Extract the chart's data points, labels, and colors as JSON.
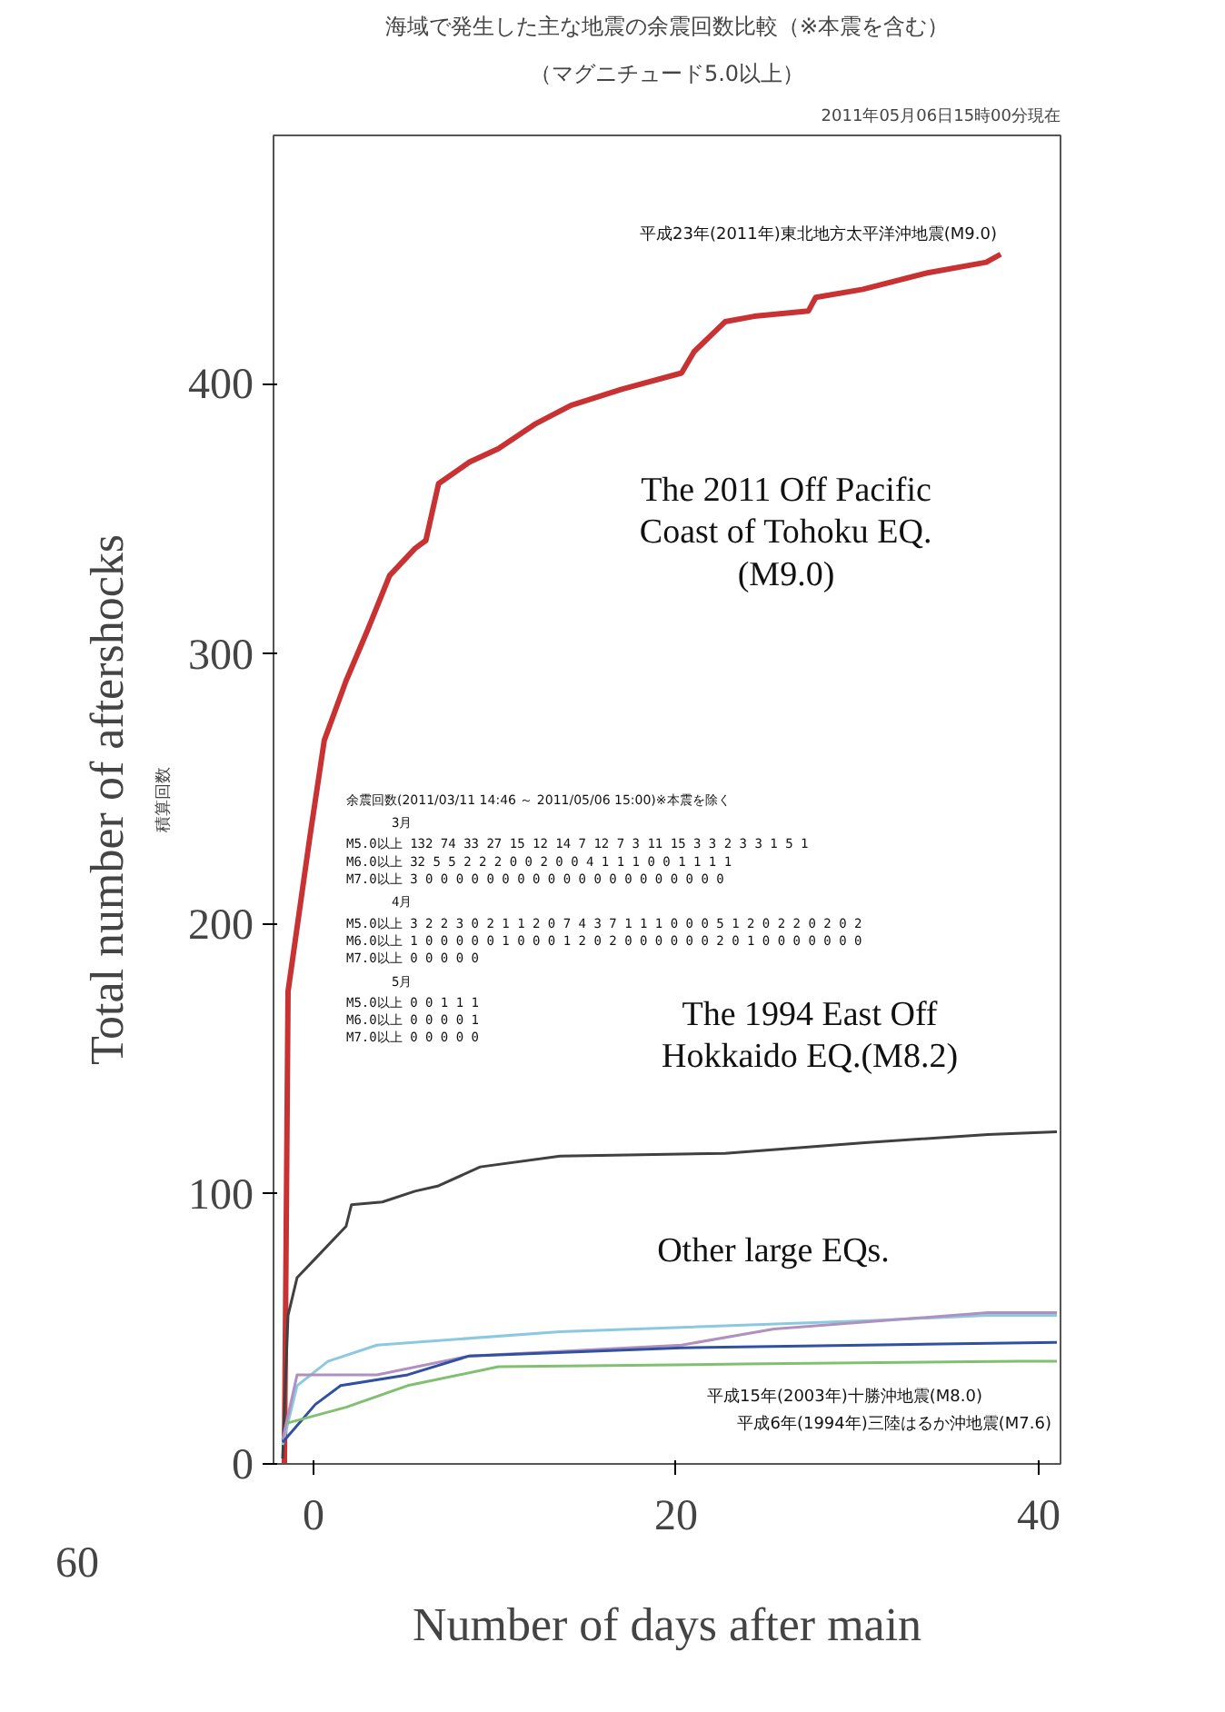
{
  "chart_data": {
    "type": "line",
    "title": "海域で発生した主な地震の余震回数比較（※本震を含む）",
    "subtitle": "（マグニチュード5.0以上）",
    "xlabel": "Number of days after main",
    "ylabel": "Total number of aftershocks",
    "xlim": [
      -2.2,
      41.2
    ],
    "ylim": [
      0,
      492
    ],
    "xticks": [
      0,
      20,
      40
    ],
    "yticks": [
      0,
      100,
      200,
      300,
      400
    ],
    "grid": false,
    "marker": "none",
    "line_style": "solid",
    "series": [
      {
        "color": "#c83232",
        "x": [
          -1.6,
          -1.4,
          -0.2,
          0.6,
          1.8,
          3.0,
          4.2,
          5.6,
          6.2,
          6.9,
          8.6,
          10.2,
          12.2,
          14.2,
          17.0,
          20.3,
          21.0,
          22.7,
          24.3,
          27.3,
          27.7,
          30.3,
          33.8,
          37.1,
          37.9
        ],
        "values": [
          0,
          175,
          232,
          268,
          290,
          309,
          329,
          339,
          342,
          363,
          371,
          376,
          385,
          392,
          398,
          404,
          412,
          423,
          425,
          427,
          432,
          435,
          441,
          445,
          448
        ]
      },
      {
        "color": "#404040",
        "x": [
          -1.7,
          -1.4,
          -0.9,
          0.1,
          1.8,
          2.1,
          3.8,
          5.6,
          6.9,
          9.2,
          13.6,
          22.7,
          30.4,
          37.2,
          41.0
        ],
        "values": [
          2,
          55,
          69,
          76,
          88,
          96,
          97,
          101,
          103,
          110,
          114,
          115,
          119,
          122,
          123
        ]
      },
      {
        "color": "#8cc8e0",
        "x": [
          -1.7,
          -0.9,
          0.8,
          3.5,
          13.6,
          30.4,
          37.2,
          41.0
        ],
        "values": [
          7,
          29,
          38,
          44,
          49,
          53,
          55,
          55
        ]
      },
      {
        "color": "#b090c0",
        "x": [
          -1.7,
          -0.9,
          3.5,
          8.6,
          20.3,
          25.4,
          37.2,
          41.0
        ],
        "values": [
          9,
          33,
          33,
          40,
          44,
          50,
          56,
          56
        ]
      },
      {
        "color": "#3050a0",
        "x": [
          -1.7,
          0.1,
          1.5,
          5.2,
          8.6,
          20.3,
          30.4,
          41.0
        ],
        "values": [
          8,
          22,
          29,
          33,
          40,
          43,
          44,
          45
        ]
      },
      {
        "color": "#80c070",
        "x": [
          -1.5,
          1.8,
          5.2,
          10.2,
          23.7,
          38.9,
          41.0
        ],
        "values": [
          15,
          21,
          29,
          36,
          37,
          38,
          38
        ]
      }
    ],
    "annotations": [
      "2011年05月06日15時00分現在",
      "平成23年(2011年)東北地方太平洋沖地震(M9.0)",
      "The 2011 Off Pacific\nCoast of Tohoku EQ.\n(M9.0)",
      "The 1994 East Off\nHokkaido EQ.(M8.2)",
      "Other large EQs.",
      "平成15年(2003年)十勝沖地震(M8.0)",
      "平成6年(1994年)三陸はるか沖地震(M7.6)",
      "積算回数",
      "60",
      "余震回数(2011/03/11 14:46 ～ 2011/05/06 15:00)※本震を除く",
      "3月",
      "M5.0以上 132 74 33 27 15 12 14 7 12 7 3 11 15 3 3 2 3 3 1 5 1",
      "M6.0以上 32 5 5 2 2 2 0 0 2 0 0 4 1 1 1 0 0 1 1 1 1",
      "M7.0以上 3 0 0 0 0 0 0 0 0 0 0 0 0 0 0 0 0 0 0 0 0",
      "4月",
      "M5.0以上 3 2 2 3 0 2 1 1 2 0 7 4 3 7 1 1 1 0 0 0 5 1 2 0 2 2 0 2 0 2",
      "M6.0以上 1 0 0 0 0 0 1 0 0 0 1 2 0 2 0 0 0 0 0 0 2 0 1 0 0 0 0 0 0 0",
      "M7.0以上 0 0 0 0 0",
      "5月",
      "M5.0以上 0 0 1 1 1",
      "M6.0以上 0 0 0 0 1",
      "M7.0以上 0 0 0 0 0"
    ]
  }
}
